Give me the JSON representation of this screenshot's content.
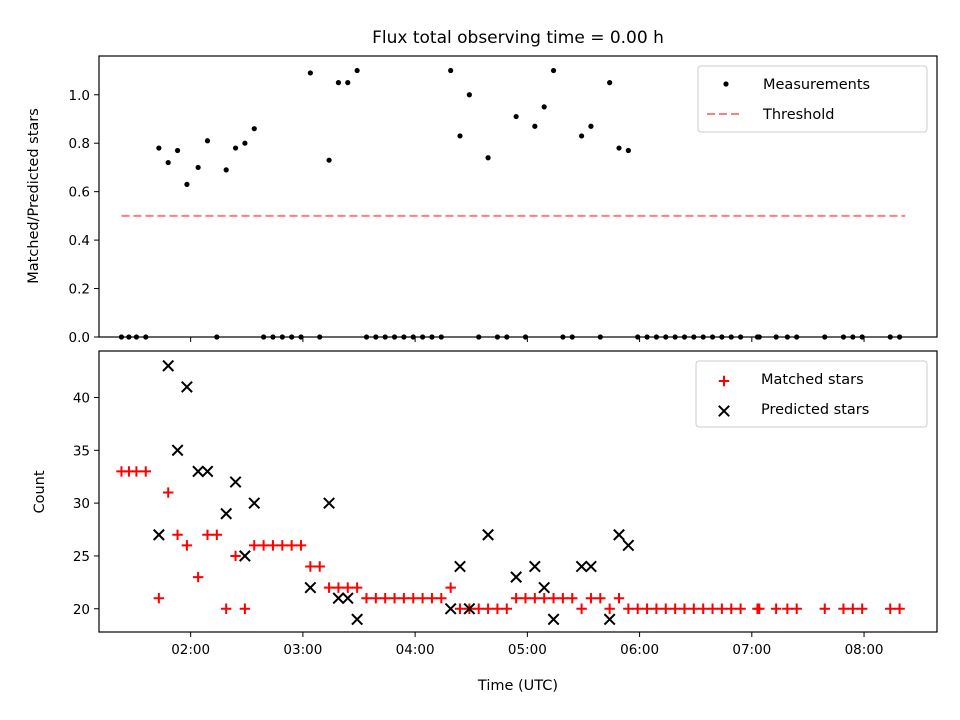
{
  "chart_data": [
    {
      "type": "scatter",
      "title": "Flux total observing time = 0.00 h",
      "xlabel": "",
      "ylabel": "Matched/Predicted stars",
      "ylim": [
        0,
        1.16
      ],
      "yticks": [
        0.0,
        0.2,
        0.4,
        0.6,
        0.8,
        1.0
      ],
      "ytick_labels": [
        "0.0",
        "0.2",
        "0.4",
        "0.6",
        "0.8",
        "1.0"
      ],
      "xlim": [
        "01:11",
        "08:39"
      ],
      "xticks": [
        "02:00",
        "03:00",
        "04:00",
        "05:00",
        "06:00",
        "07:00",
        "08:00"
      ],
      "xtick_labels_visible": false,
      "grid": false,
      "legend": "top-right",
      "series": [
        {
          "name": "Measurements",
          "style": "dot",
          "color": "#000000",
          "points": [
            [
              "01:23",
              0
            ],
            [
              "01:27",
              0
            ],
            [
              "01:31",
              0
            ],
            [
              "01:36",
              0
            ],
            [
              "01:43",
              0.78
            ],
            [
              "01:48",
              0.72
            ],
            [
              "01:53",
              0.77
            ],
            [
              "01:58",
              0.63
            ],
            [
              "02:04",
              0.7
            ],
            [
              "02:09",
              0.81
            ],
            [
              "02:14",
              0
            ],
            [
              "02:19",
              0.69
            ],
            [
              "02:24",
              0.78
            ],
            [
              "02:29",
              0.8
            ],
            [
              "02:34",
              0.86
            ],
            [
              "02:39",
              0
            ],
            [
              "02:44",
              0
            ],
            [
              "02:49",
              0
            ],
            [
              "02:54",
              0
            ],
            [
              "02:59",
              0
            ],
            [
              "03:04",
              1.09
            ],
            [
              "03:09",
              0
            ],
            [
              "03:14",
              0.73
            ],
            [
              "03:19",
              1.05
            ],
            [
              "03:24",
              1.05
            ],
            [
              "03:29",
              1.1
            ],
            [
              "03:34",
              0
            ],
            [
              "03:39",
              0
            ],
            [
              "03:44",
              0
            ],
            [
              "03:49",
              0
            ],
            [
              "03:54",
              0
            ],
            [
              "03:59",
              0
            ],
            [
              "04:04",
              0
            ],
            [
              "04:09",
              0
            ],
            [
              "04:14",
              0
            ],
            [
              "04:19",
              1.1
            ],
            [
              "04:24",
              0.83
            ],
            [
              "04:29",
              1.0
            ],
            [
              "04:34",
              0
            ],
            [
              "04:39",
              0.74
            ],
            [
              "04:44",
              0
            ],
            [
              "04:49",
              0
            ],
            [
              "04:54",
              0.91
            ],
            [
              "04:59",
              0
            ],
            [
              "05:04",
              0.87
            ],
            [
              "05:09",
              0.95
            ],
            [
              "05:14",
              1.1
            ],
            [
              "05:19",
              0
            ],
            [
              "05:24",
              0
            ],
            [
              "05:29",
              0.83
            ],
            [
              "05:34",
              0.87
            ],
            [
              "05:39",
              0
            ],
            [
              "05:44",
              1.05
            ],
            [
              "05:49",
              0.78
            ],
            [
              "05:54",
              0.77
            ],
            [
              "05:59",
              0
            ],
            [
              "06:04",
              0
            ],
            [
              "06:09",
              0
            ],
            [
              "06:14",
              0
            ],
            [
              "06:19",
              0
            ],
            [
              "06:24",
              0
            ],
            [
              "06:29",
              0
            ],
            [
              "06:34",
              0
            ],
            [
              "06:39",
              0
            ],
            [
              "06:44",
              0
            ],
            [
              "06:49",
              0
            ],
            [
              "06:54",
              0
            ],
            [
              "07:03",
              0
            ],
            [
              "07:04",
              0
            ],
            [
              "07:13",
              0
            ],
            [
              "07:19",
              0
            ],
            [
              "07:24",
              0
            ],
            [
              "07:39",
              0
            ],
            [
              "07:49",
              0
            ],
            [
              "07:54",
              0
            ],
            [
              "07:59",
              0
            ],
            [
              "08:14",
              0
            ],
            [
              "08:19",
              0
            ]
          ]
        },
        {
          "name": "Threshold",
          "style": "dashed-line",
          "color": "#ff7f7f",
          "points": [
            [
              "01:23",
              0.5
            ],
            [
              "08:22",
              0.5
            ]
          ]
        }
      ]
    },
    {
      "type": "scatter",
      "title": "",
      "xlabel": "Time (UTC)",
      "ylabel": "Count",
      "ylim": [
        17.8,
        44.4
      ],
      "yticks": [
        20,
        25,
        30,
        35,
        40
      ],
      "ytick_labels": [
        "20",
        "25",
        "30",
        "35",
        "40"
      ],
      "xlim": [
        "01:11",
        "08:39"
      ],
      "xticks": [
        "02:00",
        "03:00",
        "04:00",
        "05:00",
        "06:00",
        "07:00",
        "08:00"
      ],
      "xtick_labels": [
        "02:00",
        "03:00",
        "04:00",
        "05:00",
        "06:00",
        "07:00",
        "08:00"
      ],
      "grid": false,
      "legend": "top-right",
      "series": [
        {
          "name": "Matched stars",
          "style": "plus",
          "color": "#ff0000",
          "points": [
            [
              "01:23",
              33
            ],
            [
              "01:27",
              33
            ],
            [
              "01:31",
              33
            ],
            [
              "01:36",
              33
            ],
            [
              "01:43",
              21
            ],
            [
              "01:48",
              31
            ],
            [
              "01:53",
              27
            ],
            [
              "01:58",
              26
            ],
            [
              "02:04",
              23
            ],
            [
              "02:09",
              27
            ],
            [
              "02:14",
              27
            ],
            [
              "02:19",
              20
            ],
            [
              "02:24",
              25
            ],
            [
              "02:29",
              20
            ],
            [
              "02:34",
              26
            ],
            [
              "02:39",
              26
            ],
            [
              "02:44",
              26
            ],
            [
              "02:49",
              26
            ],
            [
              "02:54",
              26
            ],
            [
              "02:59",
              26
            ],
            [
              "03:04",
              24
            ],
            [
              "03:09",
              24
            ],
            [
              "03:14",
              22
            ],
            [
              "03:19",
              22
            ],
            [
              "03:24",
              22
            ],
            [
              "03:29",
              22
            ],
            [
              "03:34",
              21
            ],
            [
              "03:39",
              21
            ],
            [
              "03:44",
              21
            ],
            [
              "03:49",
              21
            ],
            [
              "03:54",
              21
            ],
            [
              "03:59",
              21
            ],
            [
              "04:04",
              21
            ],
            [
              "04:09",
              21
            ],
            [
              "04:14",
              21
            ],
            [
              "04:19",
              22
            ],
            [
              "04:24",
              20
            ],
            [
              "04:29",
              20
            ],
            [
              "04:34",
              20
            ],
            [
              "04:39",
              20
            ],
            [
              "04:44",
              20
            ],
            [
              "04:49",
              20
            ],
            [
              "04:54",
              21
            ],
            [
              "04:59",
              21
            ],
            [
              "05:04",
              21
            ],
            [
              "05:09",
              21
            ],
            [
              "05:14",
              21
            ],
            [
              "05:19",
              21
            ],
            [
              "05:24",
              21
            ],
            [
              "05:29",
              20
            ],
            [
              "05:34",
              21
            ],
            [
              "05:39",
              21
            ],
            [
              "05:44",
              20
            ],
            [
              "05:49",
              21
            ],
            [
              "05:54",
              20
            ],
            [
              "05:59",
              20
            ],
            [
              "06:04",
              20
            ],
            [
              "06:09",
              20
            ],
            [
              "06:14",
              20
            ],
            [
              "06:19",
              20
            ],
            [
              "06:24",
              20
            ],
            [
              "06:29",
              20
            ],
            [
              "06:34",
              20
            ],
            [
              "06:39",
              20
            ],
            [
              "06:44",
              20
            ],
            [
              "06:49",
              20
            ],
            [
              "06:54",
              20
            ],
            [
              "07:03",
              20
            ],
            [
              "07:04",
              20
            ],
            [
              "07:13",
              20
            ],
            [
              "07:19",
              20
            ],
            [
              "07:24",
              20
            ],
            [
              "07:39",
              20
            ],
            [
              "07:49",
              20
            ],
            [
              "07:54",
              20
            ],
            [
              "07:59",
              20
            ],
            [
              "08:14",
              20
            ],
            [
              "08:19",
              20
            ]
          ]
        },
        {
          "name": "Predicted stars",
          "style": "x",
          "color": "#000000",
          "points": [
            [
              "01:43",
              27
            ],
            [
              "01:48",
              43
            ],
            [
              "01:53",
              35
            ],
            [
              "01:58",
              41
            ],
            [
              "02:04",
              33
            ],
            [
              "02:09",
              33
            ],
            [
              "02:19",
              29
            ],
            [
              "02:24",
              32
            ],
            [
              "02:29",
              25
            ],
            [
              "02:34",
              30
            ],
            [
              "03:04",
              22
            ],
            [
              "03:14",
              30
            ],
            [
              "03:19",
              21
            ],
            [
              "03:24",
              21
            ],
            [
              "03:29",
              19
            ],
            [
              "04:19",
              20
            ],
            [
              "04:24",
              24
            ],
            [
              "04:29",
              20
            ],
            [
              "04:39",
              27
            ],
            [
              "04:54",
              23
            ],
            [
              "05:04",
              24
            ],
            [
              "05:09",
              22
            ],
            [
              "05:14",
              19
            ],
            [
              "05:29",
              24
            ],
            [
              "05:34",
              24
            ],
            [
              "05:44",
              19
            ],
            [
              "05:49",
              27
            ],
            [
              "05:54",
              26
            ]
          ]
        }
      ]
    }
  ]
}
